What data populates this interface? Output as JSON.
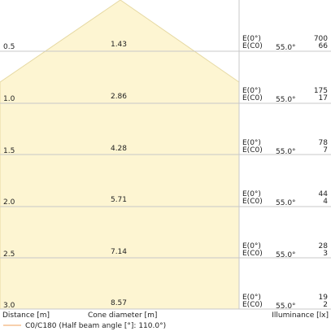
{
  "colors": {
    "cone_fill": "#fdf5d2",
    "cone_stroke": "#e6d9a3",
    "grid_line": "#c8c8c8",
    "legend_line": "#f0a15a",
    "text": "#222222"
  },
  "rows": [
    {
      "distance": "0.5",
      "diameter": "1.43",
      "e0_label": "E(0°)",
      "ec0_label": "E(C0)",
      "angle": "55.0°",
      "e0_value": "700",
      "ec0_value": "66"
    },
    {
      "distance": "1.0",
      "diameter": "2.86",
      "e0_label": "E(0°)",
      "ec0_label": "E(C0)",
      "angle": "55.0°",
      "e0_value": "175",
      "ec0_value": "17"
    },
    {
      "distance": "1.5",
      "diameter": "4.28",
      "e0_label": "E(0°)",
      "ec0_label": "E(C0)",
      "angle": "55.0°",
      "e0_value": "78",
      "ec0_value": "7"
    },
    {
      "distance": "2.0",
      "diameter": "5.71",
      "e0_label": "E(0°)",
      "ec0_label": "E(C0)",
      "angle": "55.0°",
      "e0_value": "44",
      "ec0_value": "4"
    },
    {
      "distance": "2.5",
      "diameter": "7.14",
      "e0_label": "E(0°)",
      "ec0_label": "E(C0)",
      "angle": "55.0°",
      "e0_value": "28",
      "ec0_value": "3"
    },
    {
      "distance": "3.0",
      "diameter": "8.57",
      "e0_label": "E(0°)",
      "ec0_label": "E(C0)",
      "angle": "55.0°",
      "e0_value": "19",
      "ec0_value": "2"
    }
  ],
  "footer": {
    "distance_label": "Distance [m]",
    "cone_label": "Cone diameter [m]",
    "illuminance_label": "Illuminance [lx]"
  },
  "legend": {
    "text": "C0/C180 (Half beam angle [°]: 110.0°)"
  }
}
